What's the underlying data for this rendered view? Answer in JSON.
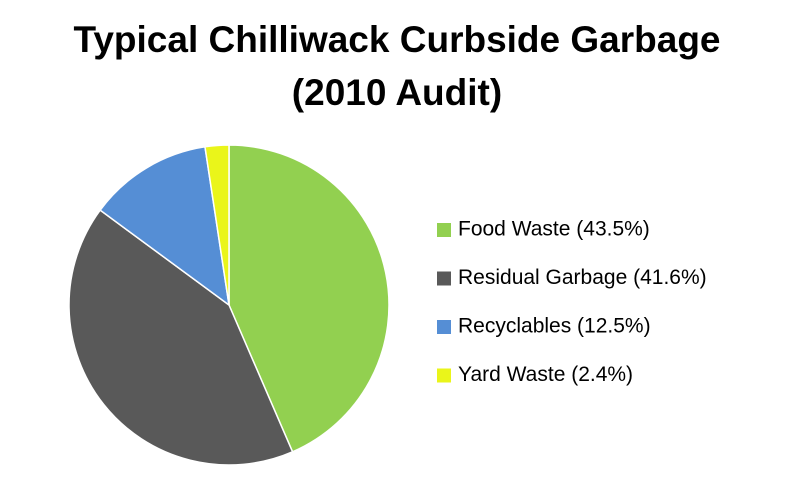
{
  "chart_data": {
    "type": "pie",
    "title": [
      "Typical Chilliwack Curbside Garbage",
      "(2010 Audit)"
    ],
    "categories": [
      "Food Waste (43.5%)",
      "Residual Garbage (41.6%)",
      "Recyclables (12.5%)",
      "Yard Waste (2.4%)"
    ],
    "values": [
      43.5,
      41.6,
      12.5,
      2.4
    ],
    "colors": [
      "#92d050",
      "#595959",
      "#558ed5",
      "#eaf51a"
    ],
    "legend": "right"
  }
}
